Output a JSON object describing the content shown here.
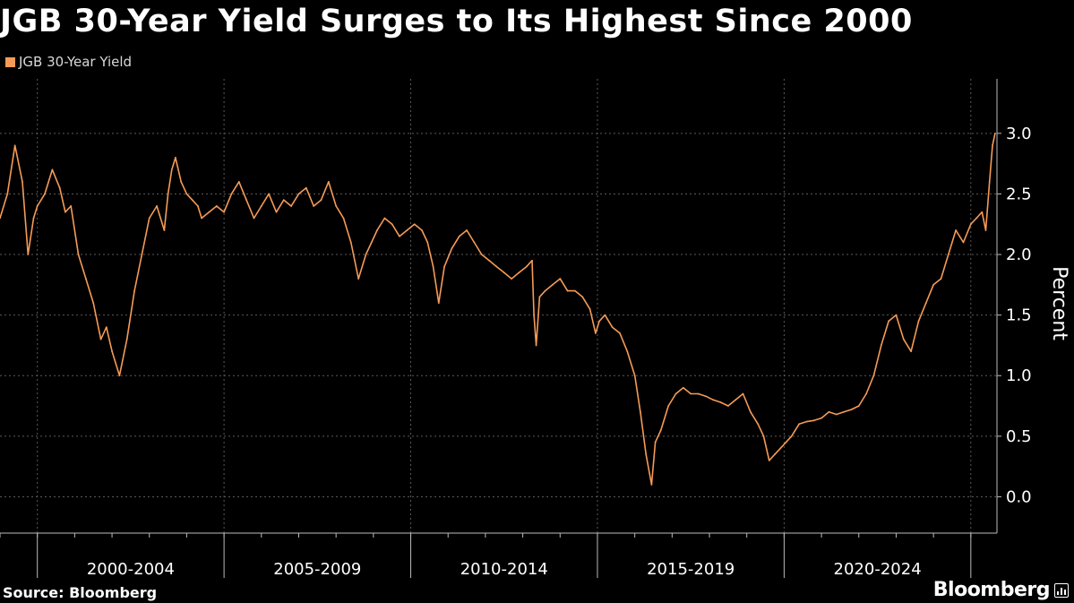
{
  "title": "JGB 30-Year Yield Surges to Its Highest Since 2000",
  "source": "Source: Bloomberg",
  "brand": "Bloomberg",
  "colors": {
    "background": "#000000",
    "series": "#f59b57",
    "grid": "#5a5a5a",
    "text": "#ffffff"
  },
  "icons": {
    "brand_mark": "bloomberg-chart-icon"
  },
  "chart_data": {
    "type": "line",
    "title": "JGB 30-Year Yield Surges to Its Highest Since 2000",
    "ylabel": "Percent",
    "xlabel": "",
    "ylim": [
      -0.3,
      3.45
    ],
    "xlim": [
      1999.0,
      2025.7
    ],
    "y_ticks": [
      0.0,
      0.5,
      1.0,
      1.5,
      2.0,
      2.5,
      3.0
    ],
    "y_tick_labels": [
      "0.0",
      "0.5",
      "1.0",
      "1.5",
      "2.0",
      "2.5",
      "3.0"
    ],
    "x_groups": [
      {
        "label": "2000-2004",
        "start": 2000.0,
        "end": 2005.0
      },
      {
        "label": "2005-2009",
        "start": 2005.0,
        "end": 2010.0
      },
      {
        "label": "2010-2014",
        "start": 2010.0,
        "end": 2015.0
      },
      {
        "label": "2015-2019",
        "start": 2015.0,
        "end": 2020.0
      },
      {
        "label": "2020-2024",
        "start": 2020.0,
        "end": 2025.0
      }
    ],
    "grid": true,
    "legend_position": "top-left",
    "series": [
      {
        "name": "JGB 30-Year Yield",
        "color": "#f59b57",
        "x": [
          1999.0,
          1999.2,
          1999.4,
          1999.6,
          1999.75,
          1999.9,
          2000.0,
          2000.2,
          2000.4,
          2000.6,
          2000.75,
          2000.9,
          2001.1,
          2001.3,
          2001.5,
          2001.7,
          2001.85,
          2002.0,
          2002.2,
          2002.4,
          2002.6,
          2002.8,
          2003.0,
          2003.2,
          2003.4,
          2003.5,
          2003.6,
          2003.7,
          2003.85,
          2004.0,
          2004.15,
          2004.3,
          2004.4,
          2004.6,
          2004.8,
          2005.0,
          2005.2,
          2005.4,
          2005.6,
          2005.8,
          2006.0,
          2006.2,
          2006.4,
          2006.6,
          2006.8,
          2007.0,
          2007.2,
          2007.4,
          2007.6,
          2007.8,
          2008.0,
          2008.2,
          2008.4,
          2008.6,
          2008.8,
          2008.95,
          2009.1,
          2009.3,
          2009.5,
          2009.7,
          2009.9,
          2010.1,
          2010.3,
          2010.45,
          2010.6,
          2010.75,
          2010.9,
          2011.1,
          2011.3,
          2011.5,
          2011.7,
          2011.9,
          2012.1,
          2012.3,
          2012.5,
          2012.7,
          2012.9,
          2013.1,
          2013.25,
          2013.3,
          2013.36,
          2013.45,
          2013.6,
          2013.8,
          2014.0,
          2014.2,
          2014.4,
          2014.6,
          2014.8,
          2014.95,
          2015.05,
          2015.2,
          2015.4,
          2015.6,
          2015.8,
          2016.0,
          2016.15,
          2016.3,
          2016.45,
          2016.55,
          2016.7,
          2016.9,
          2017.1,
          2017.3,
          2017.5,
          2017.7,
          2017.9,
          2018.1,
          2018.3,
          2018.5,
          2018.7,
          2018.9,
          2019.1,
          2019.3,
          2019.45,
          2019.6,
          2019.75,
          2019.9,
          2020.05,
          2020.2,
          2020.4,
          2020.6,
          2020.8,
          2021.0,
          2021.2,
          2021.4,
          2021.6,
          2021.8,
          2022.0,
          2022.2,
          2022.4,
          2022.6,
          2022.8,
          2023.0,
          2023.2,
          2023.4,
          2023.6,
          2023.8,
          2024.0,
          2024.2,
          2024.4,
          2024.6,
          2024.8,
          2025.0,
          2025.15,
          2025.3,
          2025.4,
          2025.5,
          2025.58,
          2025.65
        ],
        "y": [
          2.3,
          2.5,
          2.9,
          2.6,
          2.0,
          2.3,
          2.4,
          2.5,
          2.7,
          2.55,
          2.35,
          2.4,
          2.0,
          1.8,
          1.6,
          1.3,
          1.4,
          1.2,
          1.0,
          1.3,
          1.7,
          2.0,
          2.3,
          2.4,
          2.2,
          2.5,
          2.7,
          2.8,
          2.6,
          2.5,
          2.45,
          2.4,
          2.3,
          2.35,
          2.4,
          2.35,
          2.5,
          2.6,
          2.45,
          2.3,
          2.4,
          2.5,
          2.35,
          2.45,
          2.4,
          2.5,
          2.55,
          2.4,
          2.45,
          2.6,
          2.4,
          2.3,
          2.1,
          1.8,
          2.0,
          2.1,
          2.2,
          2.3,
          2.25,
          2.15,
          2.2,
          2.25,
          2.2,
          2.1,
          1.9,
          1.6,
          1.9,
          2.05,
          2.15,
          2.2,
          2.1,
          2.0,
          1.95,
          1.9,
          1.85,
          1.8,
          1.85,
          1.9,
          1.95,
          1.5,
          1.25,
          1.65,
          1.7,
          1.75,
          1.8,
          1.7,
          1.7,
          1.65,
          1.55,
          1.35,
          1.45,
          1.5,
          1.4,
          1.35,
          1.2,
          1.0,
          0.7,
          0.35,
          0.1,
          0.45,
          0.55,
          0.75,
          0.85,
          0.9,
          0.85,
          0.85,
          0.83,
          0.8,
          0.78,
          0.75,
          0.8,
          0.85,
          0.7,
          0.6,
          0.5,
          0.3,
          0.35,
          0.4,
          0.45,
          0.5,
          0.6,
          0.62,
          0.63,
          0.65,
          0.7,
          0.68,
          0.7,
          0.72,
          0.75,
          0.85,
          1.0,
          1.25,
          1.45,
          1.5,
          1.3,
          1.2,
          1.45,
          1.6,
          1.75,
          1.8,
          2.0,
          2.2,
          2.1,
          2.25,
          2.3,
          2.35,
          2.2,
          2.6,
          2.9,
          3.0
        ]
      }
    ]
  }
}
